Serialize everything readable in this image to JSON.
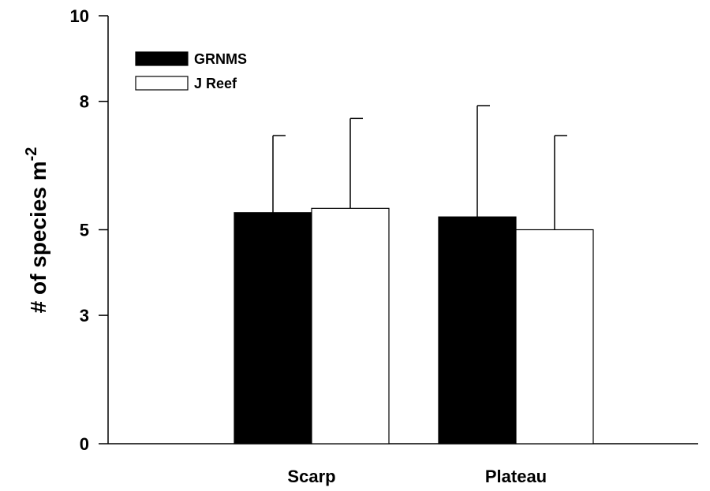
{
  "chart_data": {
    "type": "bar",
    "categories": [
      "Scarp",
      "Plateau"
    ],
    "series": [
      {
        "name": "GRNMS",
        "values": [
          5.4,
          5.3
        ],
        "errors": [
          1.8,
          2.6
        ],
        "color": "#000000"
      },
      {
        "name": "J Reef",
        "values": [
          5.5,
          5.0
        ],
        "errors": [
          2.1,
          2.2
        ],
        "color": "#ffffff"
      }
    ],
    "ylim": [
      0,
      10
    ],
    "yticks": [
      0,
      3,
      5,
      8,
      10
    ],
    "ytick_labels": [
      "0",
      "3",
      "5",
      "8",
      "10"
    ],
    "ylabel": "# of species m",
    "ylabel_superscript": "-2",
    "xlabel": "",
    "grid": false,
    "legend_position": "top-left"
  }
}
